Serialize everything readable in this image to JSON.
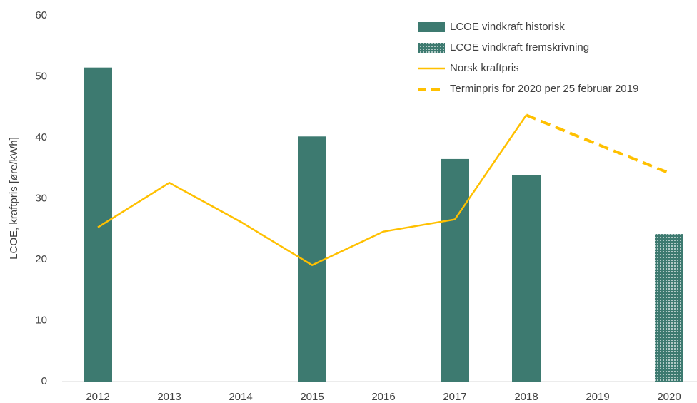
{
  "chart_data": {
    "type": "combo",
    "y_label": "LCOE, kraftpris [øre/kWh]",
    "categories": [
      "2012",
      "2013",
      "2014",
      "2015",
      "2016",
      "2017",
      "2018",
      "2019",
      "2020"
    ],
    "ylim": [
      0,
      60
    ],
    "yticks": [
      0,
      10,
      20,
      30,
      40,
      50,
      60
    ],
    "legend": "top-right",
    "series": [
      {
        "name": "LCOE vindkraft historisk",
        "type": "bar",
        "color": "#3d7a70",
        "values": [
          51.5,
          null,
          null,
          40.2,
          null,
          36.5,
          33.9,
          null,
          null
        ]
      },
      {
        "name": "LCOE vindkraft fremskrivning",
        "type": "bar",
        "style": "dotted",
        "color": "#3d7a70",
        "values": [
          null,
          null,
          null,
          null,
          null,
          null,
          null,
          null,
          24.2
        ]
      },
      {
        "name": "Norsk kraftpris",
        "type": "line",
        "color": "#ffc000",
        "values": [
          25.3,
          32.6,
          26.2,
          19.1,
          24.6,
          26.6,
          43.7,
          null,
          null
        ]
      },
      {
        "name": "Terminpris for 2020 per 25 februar 2019",
        "type": "line",
        "style": "dashed",
        "color": "#ffc000",
        "values": [
          null,
          null,
          null,
          null,
          null,
          null,
          43.7,
          38.9,
          34.2
        ]
      }
    ]
  }
}
